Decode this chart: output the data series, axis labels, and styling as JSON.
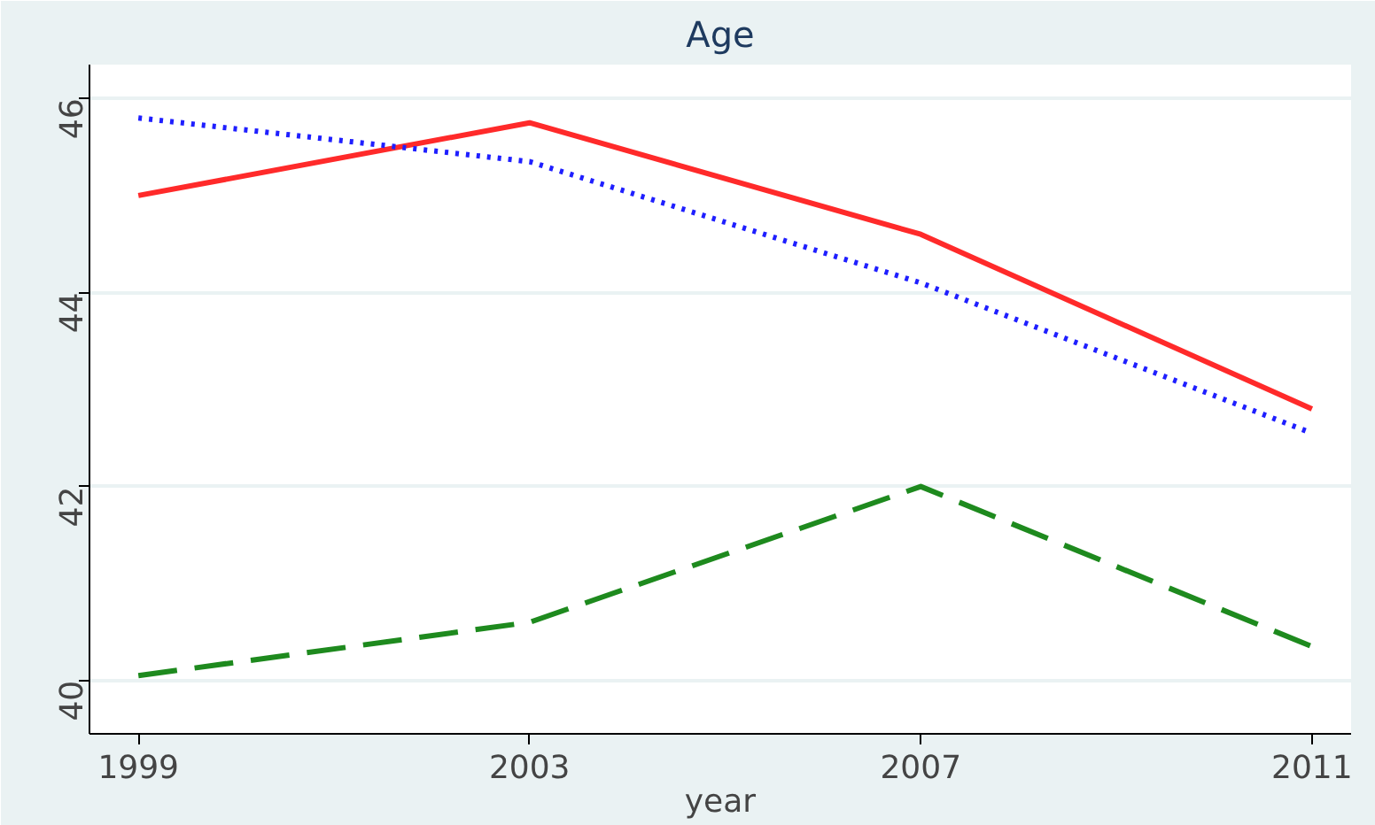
{
  "chart_data": {
    "type": "line",
    "title": "Age",
    "xlabel": "year",
    "x": [
      1999,
      2003,
      2007,
      2011
    ],
    "series": [
      {
        "color": "#ff2a2a",
        "line_style": "solid",
        "values": [
          45.0,
          45.75,
          44.6,
          42.8
        ]
      },
      {
        "color": "#1f1fff",
        "line_style": "dotted",
        "values": [
          45.8,
          45.35,
          44.1,
          42.55
        ]
      },
      {
        "color": "#1e8a1e",
        "line_style": "dashed",
        "values": [
          40.05,
          40.6,
          42.0,
          40.35
        ]
      }
    ],
    "xlim": [
      1998.5,
      2011.4
    ],
    "ylim": [
      39.45,
      46.35
    ],
    "xticks": [
      1999,
      2003,
      2007,
      2011
    ],
    "yticks": [
      40,
      42,
      44,
      46
    ],
    "grid": "y"
  }
}
